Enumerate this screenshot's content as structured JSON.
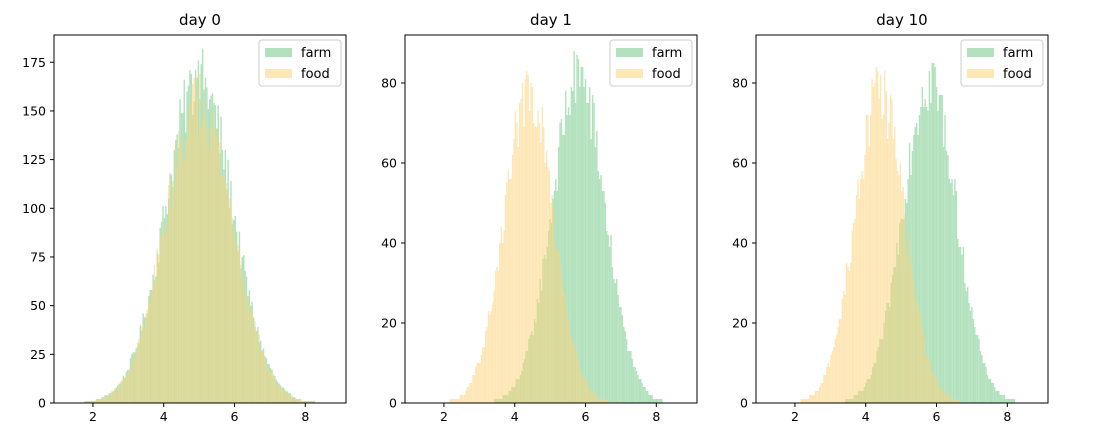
{
  "colors": {
    "farm": "#74c988",
    "food": "#fdd37c",
    "overlap": "#d1d382"
  },
  "chart_data": [
    {
      "type": "histogram",
      "title": "day 0",
      "xlabel": "",
      "ylabel": "",
      "xlim": [
        0.9,
        9.15
      ],
      "ylim": [
        0,
        189
      ],
      "x_ticks": [
        2,
        4,
        6,
        8
      ],
      "y_ticks": [
        0,
        25,
        50,
        75,
        100,
        125,
        150,
        175
      ],
      "grid": false,
      "legend": {
        "position": "top-right",
        "entries": [
          "farm",
          "food"
        ]
      },
      "bin_width": 0.04,
      "series": [
        {
          "name": "farm",
          "peak_x": 5.0,
          "peak_count": 180,
          "sigma": 0.95,
          "range": [
            1.2,
            8.8
          ]
        },
        {
          "name": "food",
          "peak_x": 5.0,
          "peak_count": 168,
          "sigma": 0.95,
          "range": [
            1.2,
            8.8
          ]
        }
      ]
    },
    {
      "type": "histogram",
      "title": "day 1",
      "xlabel": "",
      "ylabel": "",
      "xlim": [
        0.9,
        9.15
      ],
      "ylim": [
        0,
        92
      ],
      "x_ticks": [
        2,
        4,
        6,
        8
      ],
      "y_ticks": [
        0,
        20,
        40,
        60,
        80
      ],
      "grid": false,
      "legend": {
        "position": "top-right",
        "entries": [
          "farm",
          "food"
        ]
      },
      "bin_width": 0.04,
      "series": [
        {
          "name": "farm",
          "peak_x": 5.8,
          "peak_count": 88,
          "sigma": 0.75,
          "range": [
            2.5,
            9.0
          ]
        },
        {
          "name": "food",
          "peak_x": 4.4,
          "peak_count": 84,
          "sigma": 0.7,
          "range": [
            1.0,
            7.5
          ]
        }
      ]
    },
    {
      "type": "histogram",
      "title": "day 10",
      "xlabel": "",
      "ylabel": "",
      "xlim": [
        0.9,
        9.15
      ],
      "ylim": [
        0,
        92
      ],
      "x_ticks": [
        2,
        4,
        6,
        8
      ],
      "y_ticks": [
        0,
        20,
        40,
        60,
        80
      ],
      "grid": false,
      "legend": {
        "position": "top-right",
        "entries": [
          "farm",
          "food"
        ]
      },
      "bin_width": 0.04,
      "series": [
        {
          "name": "farm",
          "peak_x": 5.8,
          "peak_count": 88,
          "sigma": 0.75,
          "range": [
            2.5,
            9.0
          ]
        },
        {
          "name": "food",
          "peak_x": 4.4,
          "peak_count": 84,
          "sigma": 0.7,
          "range": [
            1.0,
            7.5
          ]
        }
      ]
    }
  ]
}
